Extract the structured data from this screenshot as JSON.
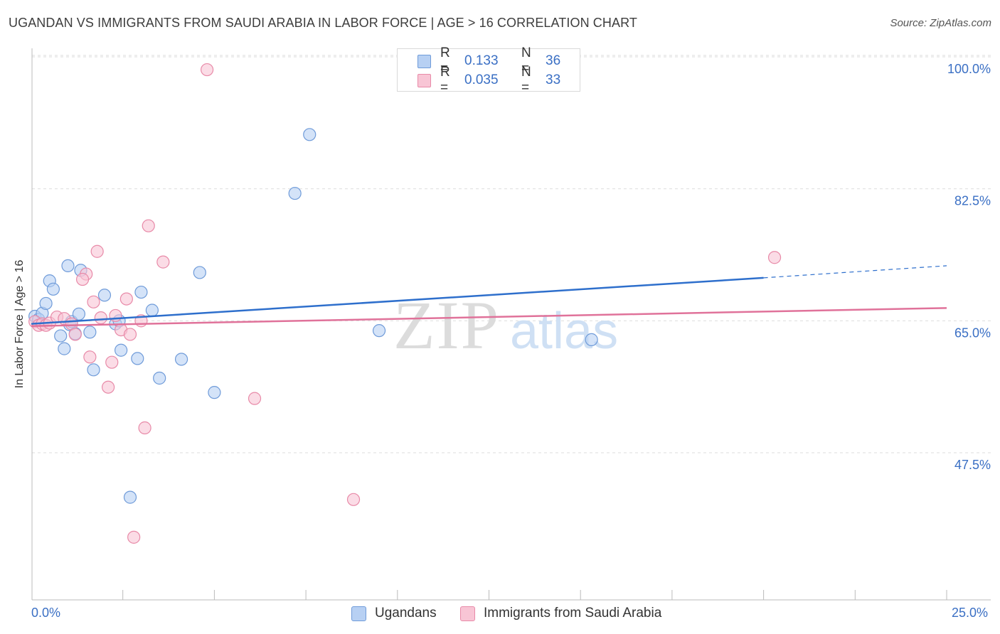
{
  "header": {
    "title": "UGANDAN VS IMMIGRANTS FROM SAUDI ARABIA IN LABOR FORCE | AGE > 16 CORRELATION CHART",
    "source": "Source: ZipAtlas.com"
  },
  "legend_top": {
    "rows": [
      {
        "r_label": "R =",
        "r_value": "0.133",
        "n_label": "N =",
        "n_value": "36"
      },
      {
        "r_label": "R =",
        "r_value": "0.035",
        "n_label": "N =",
        "n_value": "33"
      }
    ]
  },
  "legend_bottom": {
    "items": [
      "Ugandans",
      "Immigrants from Saudi Arabia"
    ]
  },
  "x_ticks": {
    "left": "0.0%",
    "right": "25.0%"
  },
  "colors": {
    "blue_fill": "#b7d0f3",
    "blue_stroke": "#6f9bd9",
    "blue_line": "#2e6fcc",
    "pink_fill": "#f8c5d5",
    "pink_stroke": "#e88aa8",
    "pink_line": "#e0729a",
    "tick_label": "#3a6fc4",
    "grid": "#dddddd"
  },
  "chart_data": {
    "type": "scatter",
    "title": "UGANDAN VS IMMIGRANTS FROM SAUDI ARABIA IN LABOR FORCE | AGE > 16 CORRELATION CHART",
    "xlabel": "",
    "ylabel": "In Labor Force | Age > 16",
    "xlim": [
      0,
      25
    ],
    "ylim": [
      30,
      102
    ],
    "y_ticks": [
      100.0,
      82.5,
      65.0,
      47.5
    ],
    "y_tick_labels": [
      "100.0%",
      "82.5%",
      "65.0%",
      "47.5%"
    ],
    "x_tick_labels": [
      "0.0%",
      "25.0%"
    ],
    "watermark": "ZIPatlas",
    "series": [
      {
        "name": "Ugandans",
        "color": "#6f9bd9",
        "points": [
          [
            0.1,
            67.2
          ],
          [
            0.2,
            66.8
          ],
          [
            0.3,
            67.6
          ],
          [
            0.4,
            68.9
          ],
          [
            0.5,
            71.9
          ],
          [
            0.6,
            70.8
          ],
          [
            0.8,
            64.6
          ],
          [
            0.9,
            62.9
          ],
          [
            1.0,
            73.9
          ],
          [
            1.05,
            66.1
          ],
          [
            1.1,
            66.5
          ],
          [
            1.2,
            64.9
          ],
          [
            1.3,
            67.5
          ],
          [
            1.35,
            73.3
          ],
          [
            1.6,
            65.1
          ],
          [
            1.7,
            60.1
          ],
          [
            2.0,
            70.0
          ],
          [
            2.3,
            66.2
          ],
          [
            2.4,
            66.6
          ],
          [
            2.45,
            62.7
          ],
          [
            2.7,
            43.2
          ],
          [
            2.9,
            61.6
          ],
          [
            3.0,
            70.4
          ],
          [
            3.3,
            68.0
          ],
          [
            3.5,
            59.0
          ],
          [
            4.1,
            61.5
          ],
          [
            4.6,
            73.0
          ],
          [
            5.0,
            57.1
          ],
          [
            7.2,
            83.5
          ],
          [
            7.6,
            91.3
          ],
          [
            9.5,
            65.3
          ],
          [
            15.3,
            64.1
          ]
        ],
        "trend": {
          "x0": 0,
          "y0": 66.2,
          "x1": 20,
          "y1": 72.3,
          "dashed_to_x": 25,
          "dashed_to_y": 73.9
        }
      },
      {
        "name": "Immigrants from Saudi Arabia",
        "color": "#e88aa8",
        "points": [
          [
            0.1,
            66.5
          ],
          [
            0.2,
            66.0
          ],
          [
            0.3,
            66.2
          ],
          [
            0.4,
            66.0
          ],
          [
            0.5,
            66.3
          ],
          [
            0.7,
            67.1
          ],
          [
            0.9,
            66.9
          ],
          [
            1.1,
            66.2
          ],
          [
            1.2,
            64.8
          ],
          [
            1.5,
            72.8
          ],
          [
            1.6,
            61.8
          ],
          [
            1.7,
            69.1
          ],
          [
            1.8,
            75.8
          ],
          [
            1.9,
            67.0
          ],
          [
            2.1,
            57.8
          ],
          [
            2.2,
            61.1
          ],
          [
            2.3,
            67.3
          ],
          [
            2.45,
            65.4
          ],
          [
            2.6,
            69.5
          ],
          [
            2.7,
            64.8
          ],
          [
            2.8,
            37.9
          ],
          [
            3.0,
            66.6
          ],
          [
            3.1,
            52.4
          ],
          [
            3.2,
            79.2
          ],
          [
            3.6,
            74.4
          ],
          [
            4.8,
            99.9
          ],
          [
            6.1,
            56.3
          ],
          [
            8.8,
            42.9
          ],
          [
            20.3,
            75.0
          ],
          [
            1.4,
            72.1
          ]
        ],
        "trend": {
          "x0": 0,
          "y0": 65.9,
          "x1": 25,
          "y1": 68.3
        }
      }
    ]
  }
}
